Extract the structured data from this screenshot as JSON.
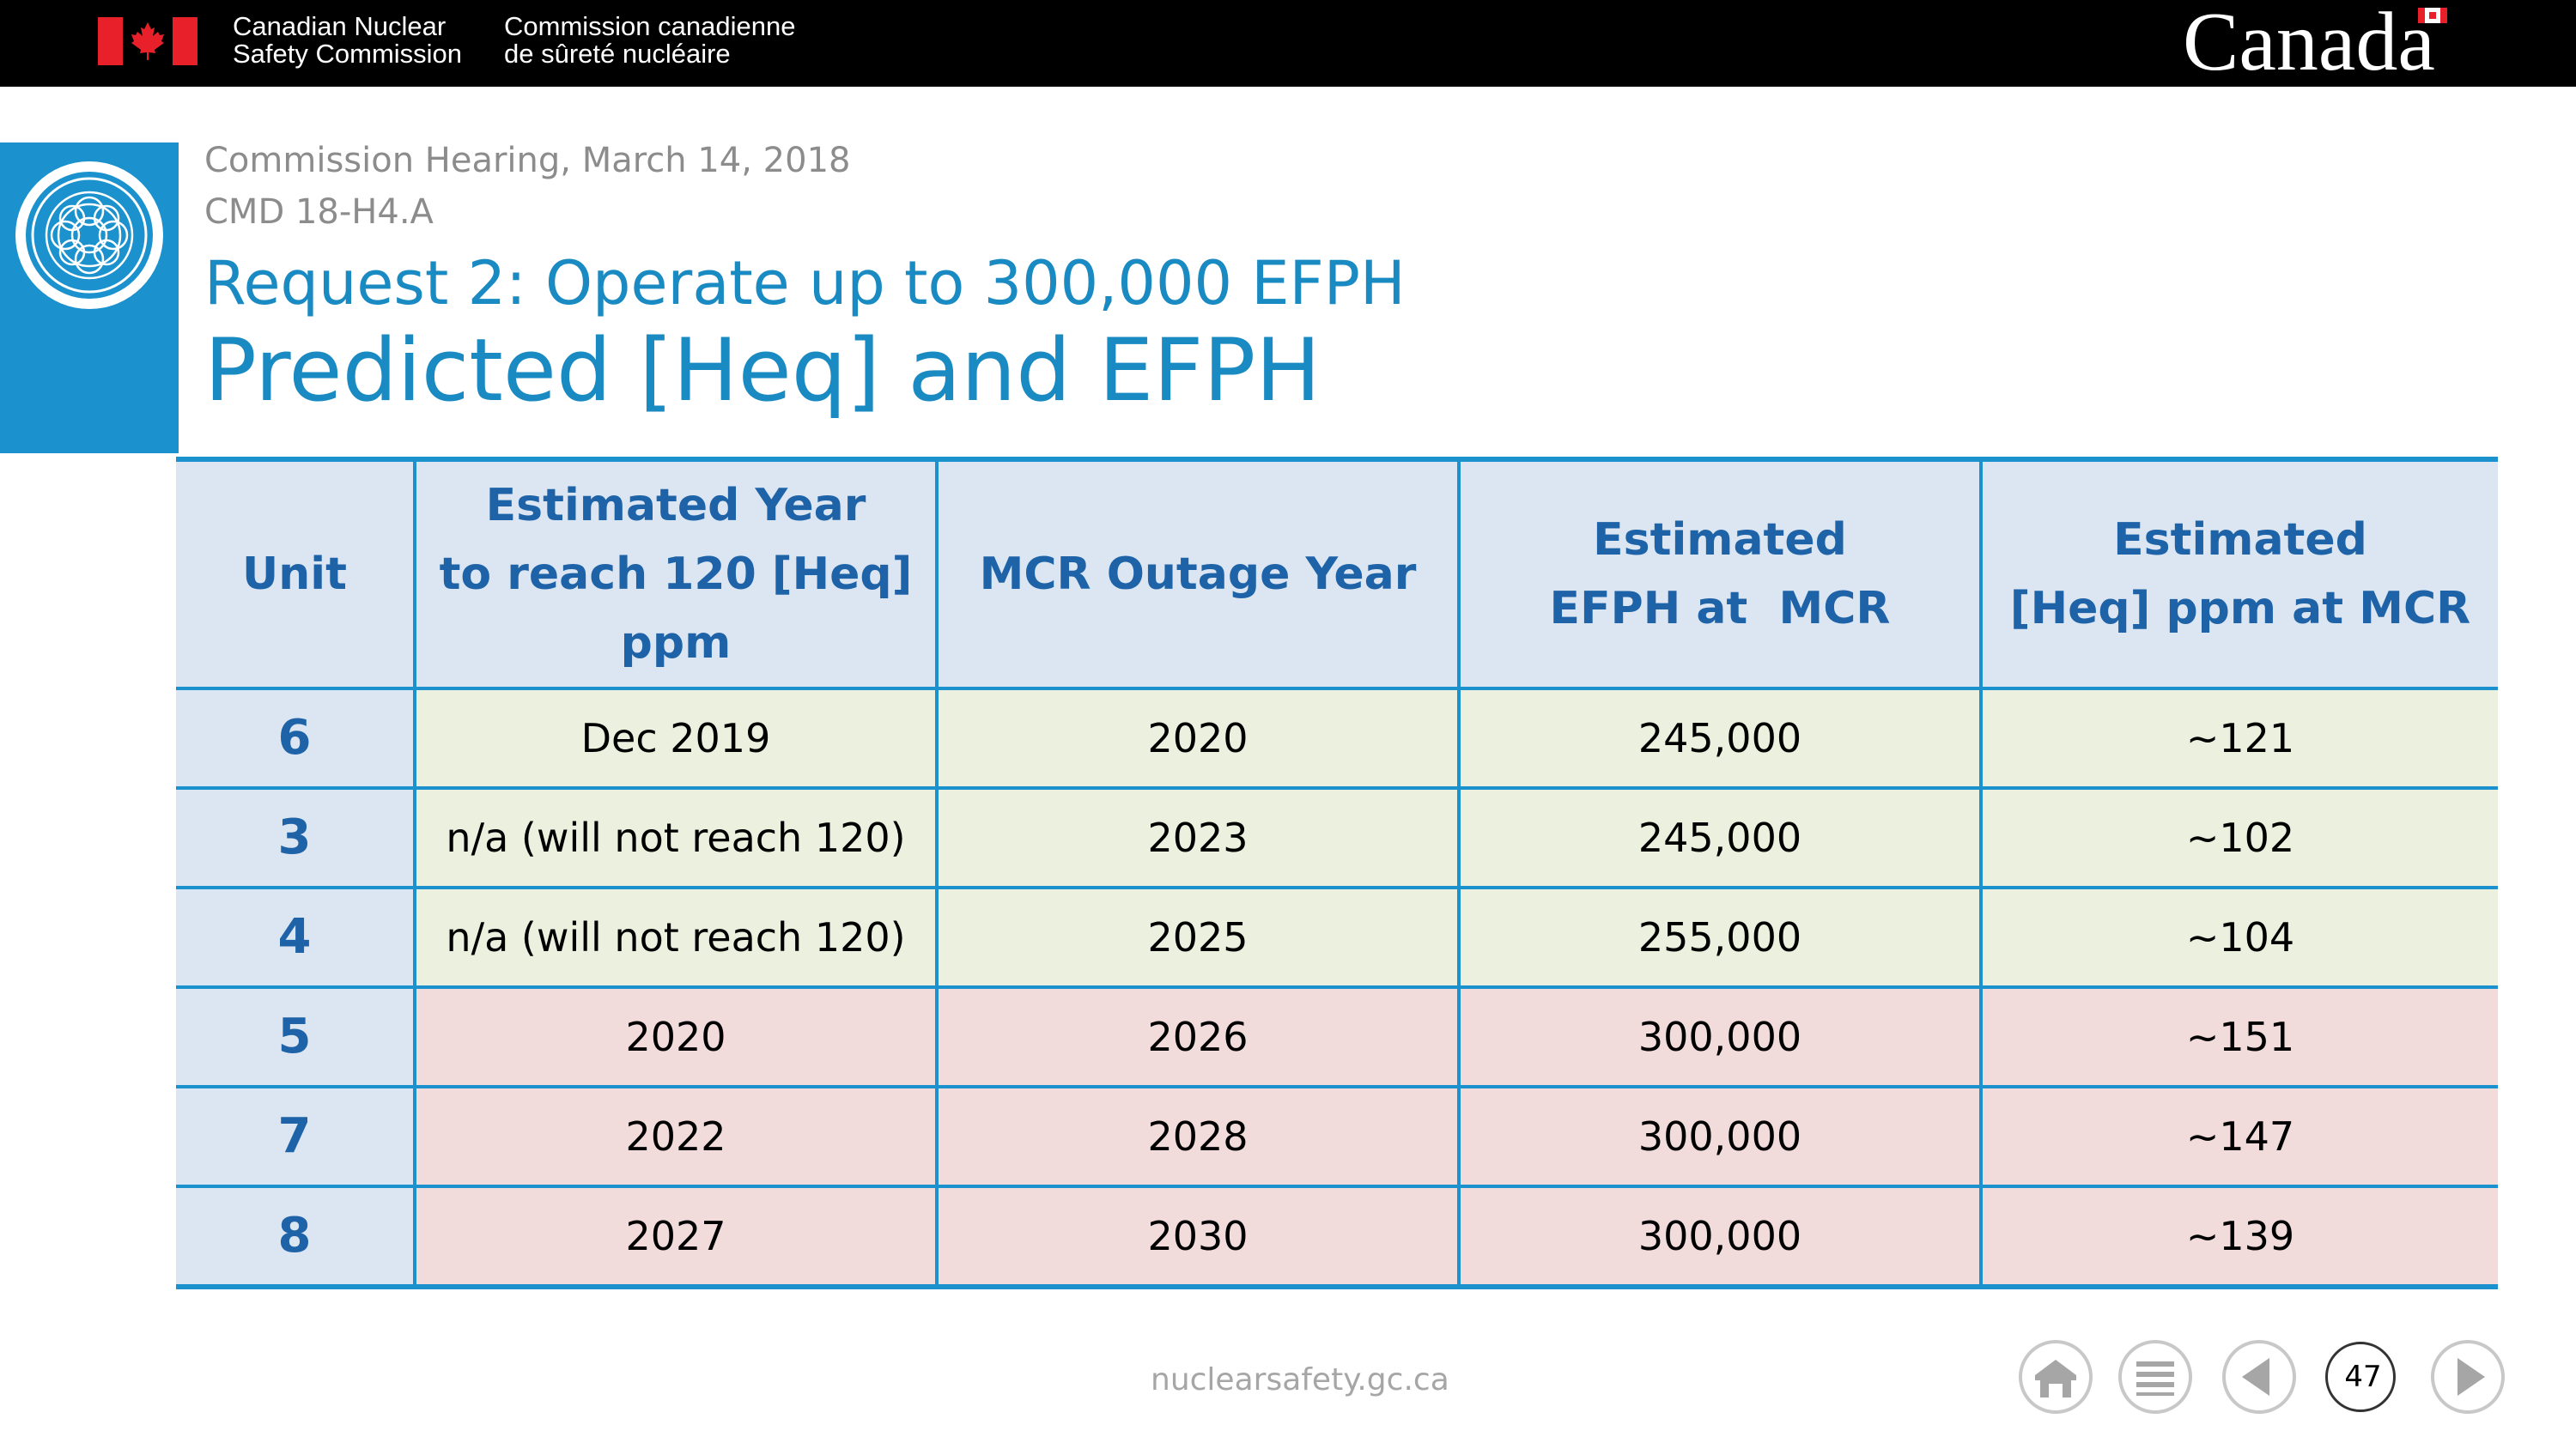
{
  "banner": {
    "org_en_line1": "Canadian Nuclear",
    "org_en_line2": "Safety Commission",
    "org_fr_line1": "Commission canadienne",
    "org_fr_line2": "de sûreté nucléaire",
    "wordmark": "Canada"
  },
  "header": {
    "hearing": "Commission Hearing, March 14, 2018",
    "cmd": "CMD 18-H4.A",
    "request": "Request 2: Operate up to 300,000 EFPH",
    "title": "Predicted [Heq] and EFPH"
  },
  "table": {
    "headers": {
      "unit": "Unit",
      "est_year_l1": "Estimated Year",
      "est_year_l2": "to reach 120 [Heq]",
      "est_year_l3": "ppm",
      "mcr_outage": "MCR Outage Year",
      "efph_l1": "Estimated",
      "efph_l2": "EFPH at  MCR",
      "heq_l1": "Estimated",
      "heq_l2": "[Heq] ppm at MCR"
    },
    "rows": [
      {
        "unit": "6",
        "year120": "Dec 2019",
        "mcr": "2020",
        "efph": "245,000",
        "heq": "~121"
      },
      {
        "unit": "3",
        "year120": "n/a (will not reach 120)",
        "mcr": "2023",
        "efph": "245,000",
        "heq": "~102"
      },
      {
        "unit": "4",
        "year120": "n/a (will not reach 120)",
        "mcr": "2025",
        "efph": "255,000",
        "heq": "~104"
      },
      {
        "unit": "5",
        "year120": "2020",
        "mcr": "2026",
        "efph": "300,000",
        "heq": "~151"
      },
      {
        "unit": "7",
        "year120": "2022",
        "mcr": "2028",
        "efph": "300,000",
        "heq": "~147"
      },
      {
        "unit": "8",
        "year120": "2027",
        "mcr": "2030",
        "efph": "300,000",
        "heq": "~139"
      }
    ]
  },
  "footer": {
    "url": "nuclearsafety.gc.ca",
    "page_number": "47",
    "nav_icons": [
      "home-icon",
      "menu-icon",
      "previous-icon",
      "next-icon"
    ]
  },
  "colors": {
    "accent_blue": "#1b92cd",
    "title_blue": "#1a8ac2",
    "header_fill": "#dce6f2",
    "green_row": "#ebf1de",
    "red_row": "#f2dcdb",
    "flag_red": "#e8202a"
  }
}
